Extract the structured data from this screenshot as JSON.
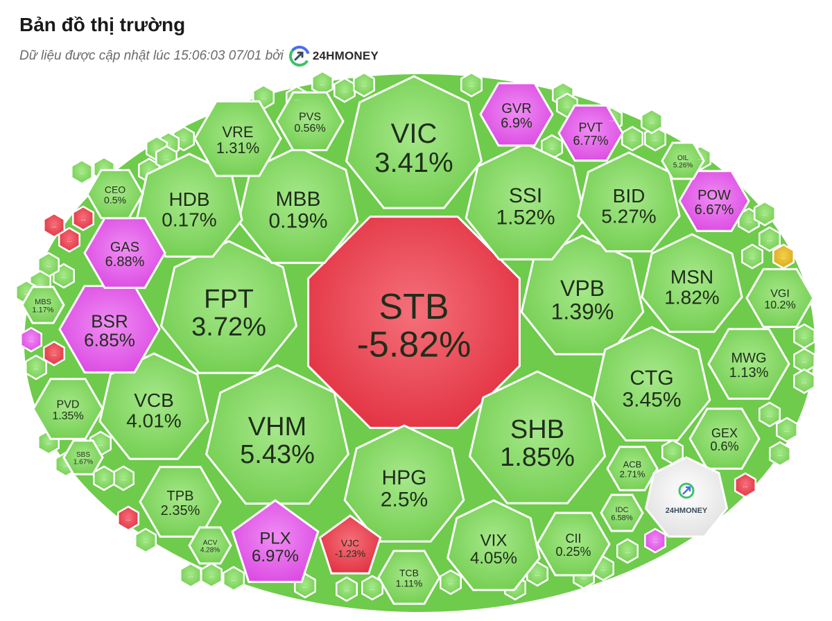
{
  "header": {
    "title": "Bản đồ thị trường",
    "subtitle": "Dữ liệu được cập nhật lúc 15:06:03 07/01 bởi",
    "brand": "24HMONEY"
  },
  "colors": {
    "up": "#7fd35c",
    "down": "#e8414e",
    "ceiling": "#e15be8",
    "reference": "#e0b020",
    "neutral": "#e9e9e9",
    "border": "#ffffff"
  },
  "chart_data": {
    "type": "heatmap",
    "title": "Bản đồ thị trường",
    "center_logo": "24HMONEY",
    "more_label": "...",
    "cells": [
      {
        "ticker": "STB",
        "change": "-5.82%",
        "value": -5.82,
        "status": "down"
      },
      {
        "ticker": "VIC",
        "change": "3.41%",
        "value": 3.41,
        "status": "up"
      },
      {
        "ticker": "FPT",
        "change": "3.72%",
        "value": 3.72,
        "status": "up"
      },
      {
        "ticker": "VHM",
        "change": "5.43%",
        "value": 5.43,
        "status": "up"
      },
      {
        "ticker": "SHB",
        "change": "1.85%",
        "value": 1.85,
        "status": "up"
      },
      {
        "ticker": "VPB",
        "change": "1.39%",
        "value": 1.39,
        "status": "up"
      },
      {
        "ticker": "HPG",
        "change": "2.5%",
        "value": 2.5,
        "status": "up"
      },
      {
        "ticker": "MBB",
        "change": "0.19%",
        "value": 0.19,
        "status": "up"
      },
      {
        "ticker": "SSI",
        "change": "1.52%",
        "value": 1.52,
        "status": "up"
      },
      {
        "ticker": "HDB",
        "change": "0.17%",
        "value": 0.17,
        "status": "up"
      },
      {
        "ticker": "BID",
        "change": "5.27%",
        "value": 5.27,
        "status": "up"
      },
      {
        "ticker": "MSN",
        "change": "1.82%",
        "value": 1.82,
        "status": "up"
      },
      {
        "ticker": "CTG",
        "change": "3.45%",
        "value": 3.45,
        "status": "up"
      },
      {
        "ticker": "VCB",
        "change": "4.01%",
        "value": 4.01,
        "status": "up"
      },
      {
        "ticker": "VIX",
        "change": "4.05%",
        "value": 4.05,
        "status": "up"
      },
      {
        "ticker": "BSR",
        "change": "6.85%",
        "value": 6.85,
        "status": "ceiling"
      },
      {
        "ticker": "GAS",
        "change": "6.88%",
        "value": 6.88,
        "status": "ceiling"
      },
      {
        "ticker": "PLX",
        "change": "6.97%",
        "value": 6.97,
        "status": "ceiling"
      },
      {
        "ticker": "GVR",
        "change": "6.9%",
        "value": 6.9,
        "status": "ceiling"
      },
      {
        "ticker": "PVT",
        "change": "6.77%",
        "value": 6.77,
        "status": "ceiling"
      },
      {
        "ticker": "POW",
        "change": "6.67%",
        "value": 6.67,
        "status": "ceiling"
      },
      {
        "ticker": "VRE",
        "change": "1.31%",
        "value": 1.31,
        "status": "up"
      },
      {
        "ticker": "PVS",
        "change": "0.56%",
        "value": 0.56,
        "status": "up"
      },
      {
        "ticker": "TPB",
        "change": "2.35%",
        "value": 2.35,
        "status": "up"
      },
      {
        "ticker": "MWG",
        "change": "1.13%",
        "value": 1.13,
        "status": "up"
      },
      {
        "ticker": "VGI",
        "change": "10.2%",
        "value": 10.2,
        "status": "up"
      },
      {
        "ticker": "GEX",
        "change": "0.6%",
        "value": 0.6,
        "status": "up"
      },
      {
        "ticker": "CII",
        "change": "0.25%",
        "value": 0.25,
        "status": "up"
      },
      {
        "ticker": "TCB",
        "change": "1.11%",
        "value": 1.11,
        "status": "up"
      },
      {
        "ticker": "VJC",
        "change": "-1.23%",
        "value": -1.23,
        "status": "down"
      },
      {
        "ticker": "PVD",
        "change": "1.35%",
        "value": 1.35,
        "status": "up"
      },
      {
        "ticker": "CEO",
        "change": "0.5%",
        "value": 0.5,
        "status": "up"
      },
      {
        "ticker": "MBS",
        "change": "1.17%",
        "value": 1.17,
        "status": "up"
      },
      {
        "ticker": "SBS",
        "change": "1.67%",
        "value": 1.67,
        "status": "up"
      },
      {
        "ticker": "ACV",
        "change": "4.28%",
        "value": 4.28,
        "status": "up"
      },
      {
        "ticker": "ACB",
        "change": "2.71%",
        "value": 2.71,
        "status": "up"
      },
      {
        "ticker": "IDC",
        "change": "6.58%",
        "value": 6.58,
        "status": "up"
      },
      {
        "ticker": "OIL",
        "change": "5.26%",
        "value": 5.26,
        "status": "up"
      }
    ]
  }
}
